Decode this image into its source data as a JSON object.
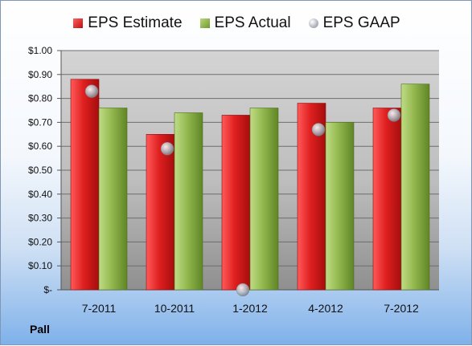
{
  "legend": {
    "estimate": "EPS Estimate",
    "actual": "EPS Actual",
    "gaap": "EPS GAAP"
  },
  "company": "Pall",
  "colors": {
    "estimate": "#d01c1c",
    "actual": "#8db34a",
    "gaap": "#a7adb5"
  },
  "chart_data": {
    "type": "bar",
    "categories": [
      "7-2011",
      "10-2011",
      "1-2012",
      "4-2012",
      "7-2012"
    ],
    "series": [
      {
        "name": "EPS Estimate",
        "values": [
          0.88,
          0.65,
          0.73,
          0.78,
          0.76
        ]
      },
      {
        "name": "EPS Actual",
        "values": [
          0.76,
          0.74,
          0.76,
          0.7,
          0.86
        ]
      },
      {
        "name": "EPS GAAP",
        "values": [
          0.83,
          0.59,
          0.0,
          0.67,
          0.73
        ]
      }
    ],
    "ylim": [
      0,
      1.0
    ],
    "yticks": [
      "$-",
      "$0.10",
      "$0.20",
      "$0.30",
      "$0.40",
      "$0.50",
      "$0.60",
      "$0.70",
      "$0.80",
      "$0.90",
      "$1.00"
    ],
    "grid": true,
    "legend_position": "top"
  }
}
